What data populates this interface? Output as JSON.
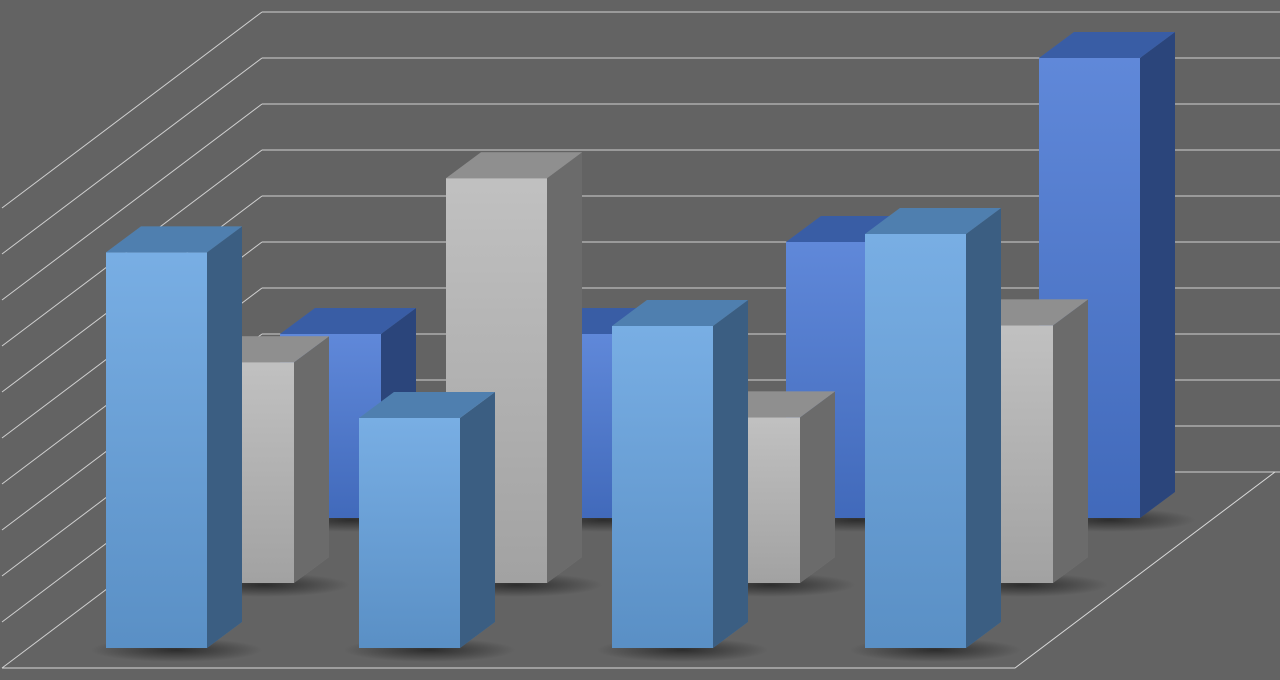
{
  "chart_data": {
    "type": "bar3d",
    "categories": [
      null,
      null,
      null,
      null
    ],
    "series": [
      {
        "color": "#66a3e0",
        "values": [
          8.6,
          5.0,
          7.0,
          9.0
        ]
      },
      {
        "color": "#b8b8b8",
        "values": [
          4.8,
          8.8,
          3.6,
          5.6
        ]
      },
      {
        "color": "#4a78d4",
        "values": [
          4.0,
          4.0,
          6.0,
          10.0
        ]
      }
    ],
    "ylim": [
      0,
      10
    ],
    "yticks": [
      0,
      1,
      2,
      3,
      4,
      5,
      6,
      7,
      8,
      9,
      10
    ],
    "grid": true
  }
}
